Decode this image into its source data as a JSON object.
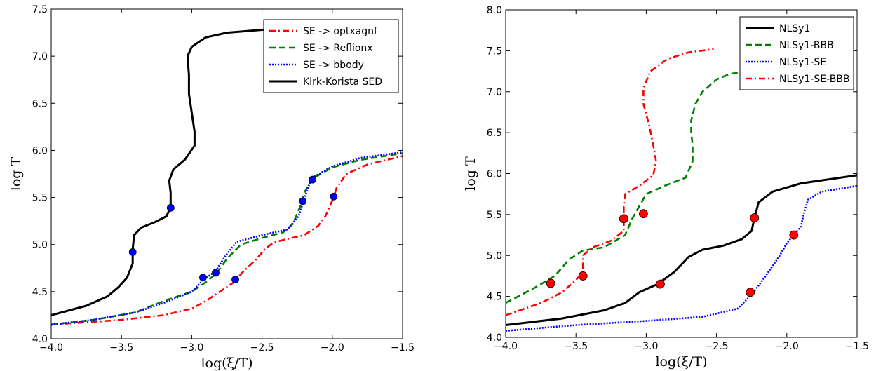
{
  "chart_data": [
    {
      "type": "line",
      "xlabel": "log(ξ/T)",
      "ylabel": "log T",
      "xlim": [
        -4.0,
        -1.5
      ],
      "ylim": [
        4.0,
        7.5
      ],
      "xticks": [
        -4.0,
        -3.5,
        -3.0,
        -2.5,
        -2.0,
        -1.5
      ],
      "xtick_labels": [
        "−4.0",
        "−3.5",
        "−3.0",
        "−2.5",
        "−2.0",
        "−1.5"
      ],
      "yticks": [
        4.0,
        4.5,
        5.0,
        5.5,
        6.0,
        6.5,
        7.0,
        7.5
      ],
      "ytick_labels": [
        "4.0",
        "4.5",
        "5.0",
        "5.5",
        "6.0",
        "6.5",
        "7.0",
        "7.5"
      ],
      "grid": false,
      "legend_position": "top-right",
      "series": [
        {
          "name": "SE -> optxagnf",
          "color": "#ff0000",
          "dash": "dashdot",
          "points": [
            [
              -4.0,
              4.15
            ],
            [
              -3.8,
              4.17
            ],
            [
              -3.5,
              4.2
            ],
            [
              -3.2,
              4.25
            ],
            [
              -3.0,
              4.32
            ],
            [
              -2.9,
              4.4
            ],
            [
              -2.8,
              4.5
            ],
            [
              -2.7,
              4.6
            ],
            [
              -2.63,
              4.72
            ],
            [
              -2.55,
              4.83
            ],
            [
              -2.48,
              4.95
            ],
            [
              -2.42,
              5.02
            ],
            [
              -2.32,
              5.06
            ],
            [
              -2.2,
              5.1
            ],
            [
              -2.1,
              5.2
            ],
            [
              -2.05,
              5.3
            ],
            [
              -2.02,
              5.4
            ],
            [
              -1.99,
              5.5
            ],
            [
              -1.97,
              5.6
            ],
            [
              -1.9,
              5.75
            ],
            [
              -1.75,
              5.85
            ],
            [
              -1.5,
              5.94
            ]
          ]
        },
        {
          "name": "SE -> Reflionx",
          "color": "#008000",
          "dash": "dashed",
          "points": [
            [
              -4.0,
              4.15
            ],
            [
              -3.7,
              4.2
            ],
            [
              -3.4,
              4.28
            ],
            [
              -3.2,
              4.4
            ],
            [
              -3.0,
              4.5
            ],
            [
              -2.9,
              4.6
            ],
            [
              -2.82,
              4.7
            ],
            [
              -2.75,
              4.85
            ],
            [
              -2.65,
              5.0
            ],
            [
              -2.5,
              5.07
            ],
            [
              -2.35,
              5.13
            ],
            [
              -2.28,
              5.22
            ],
            [
              -2.23,
              5.4
            ],
            [
              -2.2,
              5.55
            ],
            [
              -2.14,
              5.7
            ],
            [
              -2.0,
              5.82
            ],
            [
              -1.8,
              5.9
            ],
            [
              -1.5,
              5.97
            ]
          ]
        },
        {
          "name": "SE -> bbody",
          "color": "#0000ff",
          "dash": "dotted",
          "points": [
            [
              -4.0,
              4.15
            ],
            [
              -3.7,
              4.2
            ],
            [
              -3.4,
              4.28
            ],
            [
              -3.2,
              4.38
            ],
            [
              -3.0,
              4.5
            ],
            [
              -2.92,
              4.62
            ],
            [
              -2.83,
              4.72
            ],
            [
              -2.76,
              4.88
            ],
            [
              -2.68,
              5.03
            ],
            [
              -2.5,
              5.1
            ],
            [
              -2.32,
              5.16
            ],
            [
              -2.24,
              5.3
            ],
            [
              -2.2,
              5.48
            ],
            [
              -2.17,
              5.62
            ],
            [
              -2.13,
              5.72
            ],
            [
              -2.0,
              5.83
            ],
            [
              -1.8,
              5.92
            ],
            [
              -1.5,
              5.98
            ]
          ]
        },
        {
          "name": "Kirk-Korista SED",
          "color": "#000000",
          "dash": "solid",
          "points": [
            [
              -4.0,
              4.25
            ],
            [
              -3.75,
              4.35
            ],
            [
              -3.6,
              4.45
            ],
            [
              -3.52,
              4.55
            ],
            [
              -3.46,
              4.65
            ],
            [
              -3.42,
              4.8
            ],
            [
              -3.42,
              4.95
            ],
            [
              -3.41,
              5.1
            ],
            [
              -3.36,
              5.18
            ],
            [
              -3.26,
              5.24
            ],
            [
              -3.18,
              5.3
            ],
            [
              -3.15,
              5.4
            ],
            [
              -3.15,
              5.55
            ],
            [
              -3.16,
              5.68
            ],
            [
              -3.13,
              5.8
            ],
            [
              -3.05,
              5.9
            ],
            [
              -2.98,
              6.05
            ],
            [
              -2.98,
              6.2
            ],
            [
              -3.0,
              6.4
            ],
            [
              -3.02,
              6.6
            ],
            [
              -3.02,
              6.8
            ],
            [
              -3.03,
              7.0
            ],
            [
              -3.0,
              7.1
            ],
            [
              -2.9,
              7.2
            ],
            [
              -2.75,
              7.25
            ],
            [
              -2.5,
              7.28
            ],
            [
              -2.35,
              7.3
            ]
          ]
        }
      ],
      "markers": {
        "color": "#0000ff",
        "points": [
          [
            -3.42,
            4.92
          ],
          [
            -3.15,
            5.39
          ],
          [
            -2.92,
            4.65
          ],
          [
            -2.83,
            4.7
          ],
          [
            -2.69,
            4.63
          ],
          [
            -2.21,
            5.46
          ],
          [
            -2.14,
            5.69
          ],
          [
            -1.99,
            5.51
          ]
        ]
      }
    },
    {
      "type": "line",
      "xlabel": "log(ξ/T)",
      "ylabel": "log T",
      "xlim": [
        -4.0,
        -1.5
      ],
      "ylim": [
        4.0,
        8.0
      ],
      "xticks": [
        -4.0,
        -3.5,
        -3.0,
        -2.5,
        -2.0,
        -1.5
      ],
      "xtick_labels": [
        "−4.0",
        "−3.5",
        "−3.0",
        "−2.5",
        "−2.0",
        "−1.5"
      ],
      "yticks": [
        4.0,
        4.5,
        5.0,
        5.5,
        6.0,
        6.5,
        7.0,
        7.5,
        8.0
      ],
      "ytick_labels": [
        "4.0",
        "4.5",
        "5.0",
        "5.5",
        "6.0",
        "6.5",
        "7.0",
        "7.5",
        "8.0"
      ],
      "grid": false,
      "legend_position": "top-right",
      "series": [
        {
          "name": "NLSy1",
          "color": "#000000",
          "dash": "solid",
          "points": [
            [
              -4.0,
              4.15
            ],
            [
              -3.6,
              4.23
            ],
            [
              -3.3,
              4.33
            ],
            [
              -3.15,
              4.42
            ],
            [
              -3.05,
              4.55
            ],
            [
              -2.92,
              4.65
            ],
            [
              -2.8,
              4.8
            ],
            [
              -2.7,
              4.98
            ],
            [
              -2.6,
              5.07
            ],
            [
              -2.45,
              5.12
            ],
            [
              -2.32,
              5.2
            ],
            [
              -2.25,
              5.3
            ],
            [
              -2.23,
              5.46
            ],
            [
              -2.2,
              5.65
            ],
            [
              -2.1,
              5.78
            ],
            [
              -1.9,
              5.88
            ],
            [
              -1.5,
              5.98
            ]
          ]
        },
        {
          "name": "NLSy1-BBB",
          "color": "#008000",
          "dash": "dashed",
          "points": [
            [
              -4.0,
              4.42
            ],
            [
              -3.8,
              4.6
            ],
            [
              -3.65,
              4.75
            ],
            [
              -3.55,
              4.95
            ],
            [
              -3.45,
              5.06
            ],
            [
              -3.3,
              5.1
            ],
            [
              -3.15,
              5.25
            ],
            [
              -3.1,
              5.45
            ],
            [
              -3.05,
              5.6
            ],
            [
              -3.0,
              5.75
            ],
            [
              -2.87,
              5.85
            ],
            [
              -2.72,
              5.95
            ],
            [
              -2.67,
              6.15
            ],
            [
              -2.67,
              6.35
            ],
            [
              -2.68,
              6.5
            ],
            [
              -2.68,
              6.65
            ],
            [
              -2.65,
              6.85
            ],
            [
              -2.6,
              7.0
            ],
            [
              -2.5,
              7.15
            ],
            [
              -2.4,
              7.22
            ],
            [
              -2.25,
              7.25
            ]
          ]
        },
        {
          "name": "NLSy1-SE",
          "color": "#0000ff",
          "dash": "dotted",
          "points": [
            [
              -4.0,
              4.08
            ],
            [
              -3.5,
              4.15
            ],
            [
              -3.0,
              4.2
            ],
            [
              -2.6,
              4.25
            ],
            [
              -2.35,
              4.35
            ],
            [
              -2.25,
              4.52
            ],
            [
              -2.15,
              4.75
            ],
            [
              -2.05,
              5.0
            ],
            [
              -2.0,
              5.15
            ],
            [
              -1.95,
              5.25
            ],
            [
              -1.9,
              5.35
            ],
            [
              -1.88,
              5.5
            ],
            [
              -1.85,
              5.68
            ],
            [
              -1.75,
              5.78
            ],
            [
              -1.5,
              5.85
            ]
          ]
        },
        {
          "name": "NLSy1-SE-BBB",
          "color": "#ff0000",
          "dash": "dashdot",
          "points": [
            [
              -4.0,
              4.27
            ],
            [
              -3.75,
              4.42
            ],
            [
              -3.6,
              4.55
            ],
            [
              -3.5,
              4.7
            ],
            [
              -3.45,
              4.8
            ],
            [
              -3.45,
              5.0
            ],
            [
              -3.38,
              5.1
            ],
            [
              -3.25,
              5.18
            ],
            [
              -3.16,
              5.3
            ],
            [
              -3.16,
              5.6
            ],
            [
              -3.15,
              5.75
            ],
            [
              -3.05,
              5.85
            ],
            [
              -2.95,
              5.98
            ],
            [
              -2.93,
              6.15
            ],
            [
              -2.95,
              6.35
            ],
            [
              -2.98,
              6.6
            ],
            [
              -3.02,
              6.85
            ],
            [
              -3.02,
              7.05
            ],
            [
              -2.97,
              7.25
            ],
            [
              -2.85,
              7.4
            ],
            [
              -2.7,
              7.48
            ],
            [
              -2.52,
              7.52
            ]
          ]
        }
      ],
      "markers": {
        "color": "#ff0000",
        "points": [
          [
            -3.68,
            4.66
          ],
          [
            -3.45,
            4.75
          ],
          [
            -3.16,
            5.45
          ],
          [
            -3.02,
            5.51
          ],
          [
            -2.9,
            4.65
          ],
          [
            -2.23,
            5.46
          ],
          [
            -2.26,
            4.55
          ],
          [
            -1.95,
            5.25
          ]
        ]
      }
    }
  ]
}
